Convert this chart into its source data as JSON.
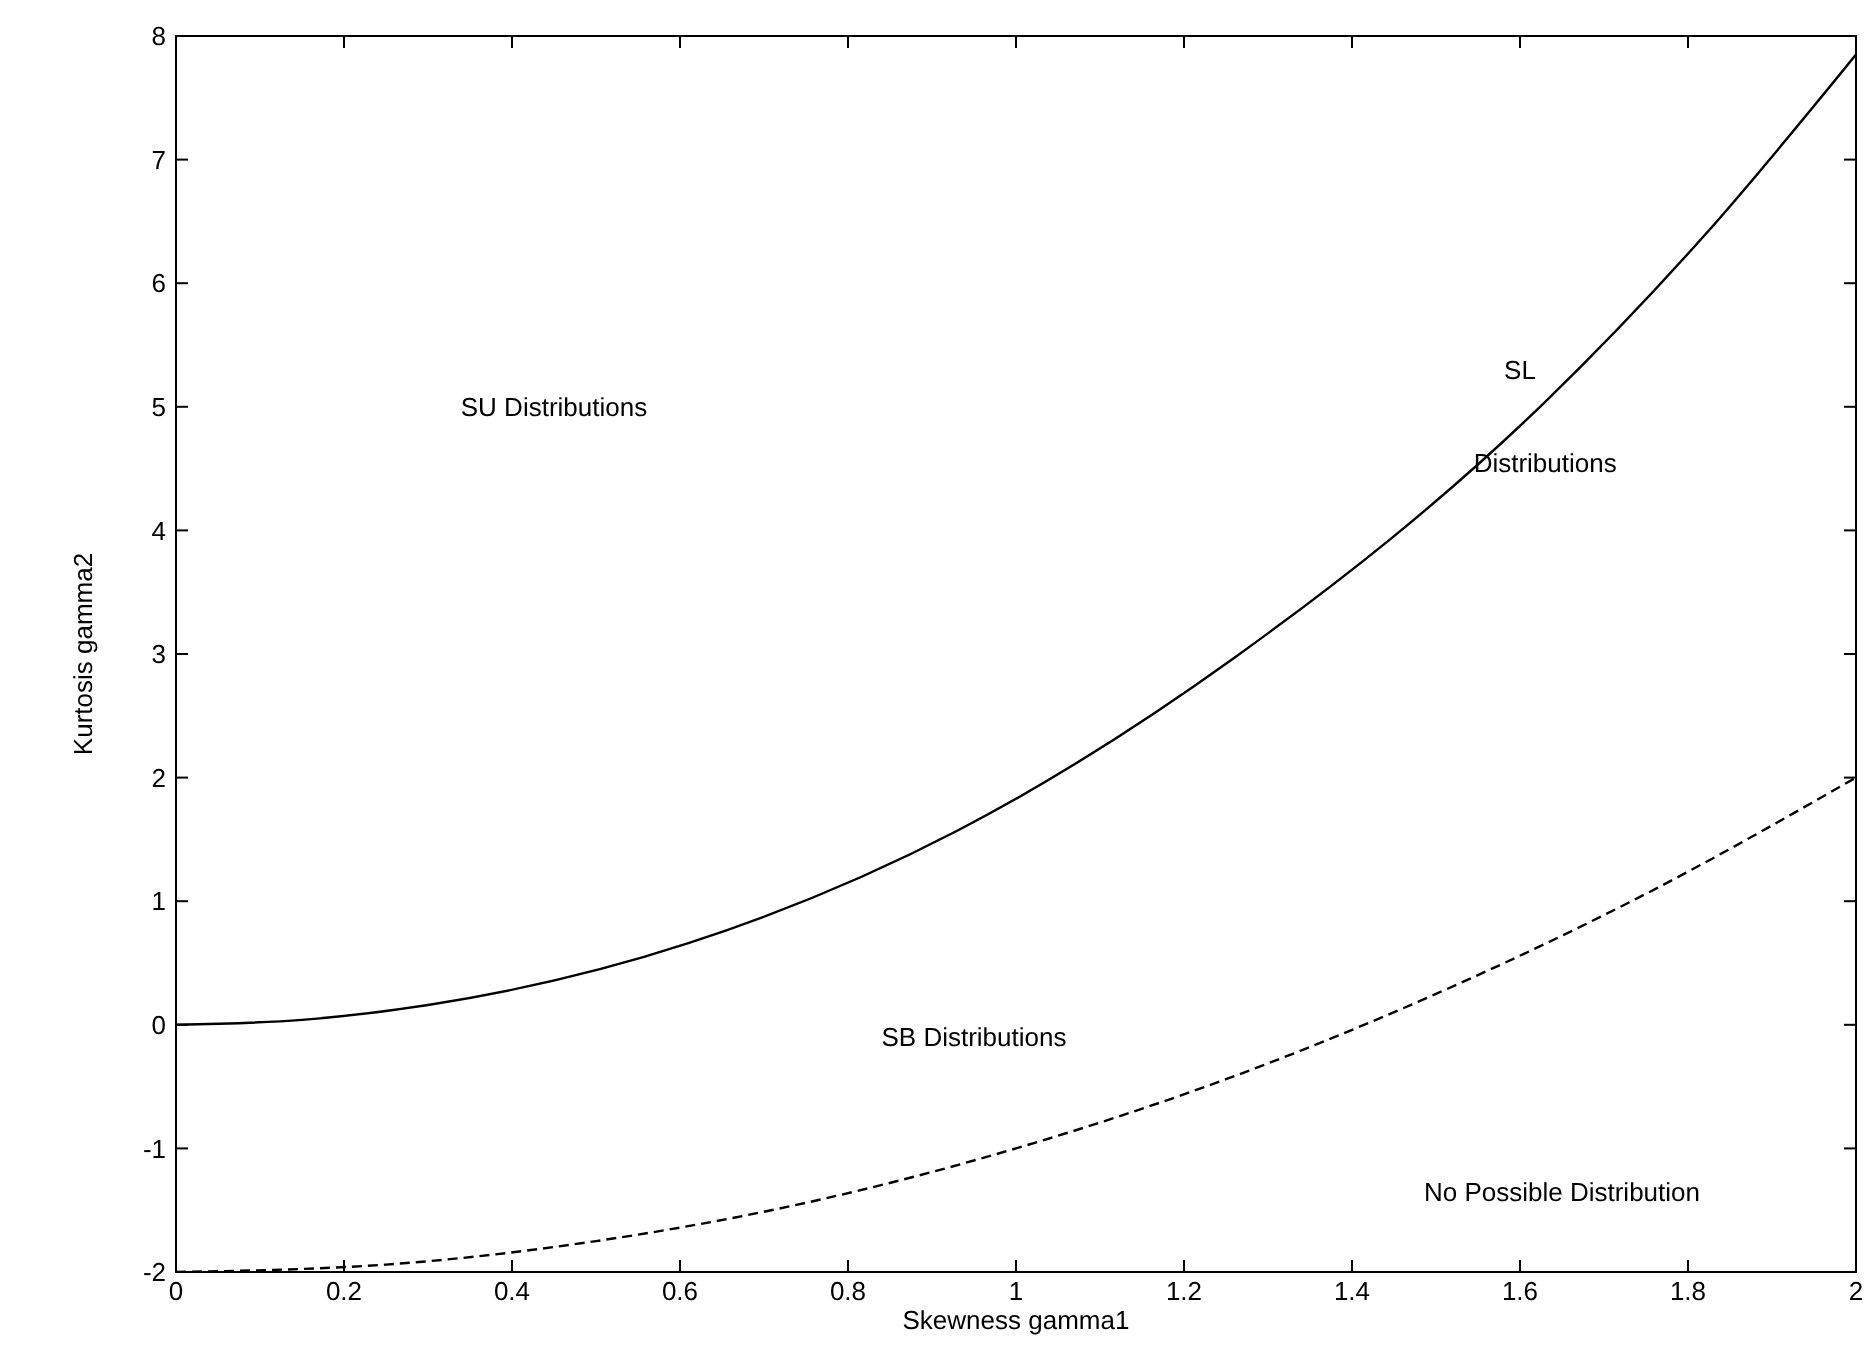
{
  "chart_data": {
    "type": "line",
    "xlabel": "Skewness gamma1",
    "ylabel": "Kurtosis gamma2",
    "xlim": [
      0,
      2
    ],
    "ylim": [
      -2,
      8
    ],
    "xticks": [
      0,
      0.2,
      0.4,
      0.6,
      0.8,
      1,
      1.2,
      1.4,
      1.6,
      1.8,
      2
    ],
    "yticks": [
      -2,
      -1,
      0,
      1,
      2,
      3,
      4,
      5,
      6,
      7,
      8
    ],
    "grid": false,
    "series": [
      {
        "color": "#000000",
        "line_style": "solid",
        "x": [
          0,
          0.15,
          0.3,
          0.61,
          0.93,
          1.26,
          1.63,
          1.82,
          2
        ],
        "values": [
          0,
          0.04,
          0.16,
          0.66,
          1.57,
          2.97,
          5.04,
          6.39,
          7.85
        ]
      },
      {
        "color": "#000000",
        "line_style": "dashed",
        "x": [
          0,
          0.25,
          0.5,
          0.75,
          1,
          1.25,
          1.5,
          1.75,
          2
        ],
        "values": [
          -2,
          -1.94,
          -1.75,
          -1.44,
          -1,
          -0.44,
          0.25,
          1.06,
          2
        ]
      }
    ],
    "annotations": [
      "SU Distributions",
      "SL",
      "Distributions",
      "SB Distributions",
      "No Possible Distribution"
    ]
  }
}
